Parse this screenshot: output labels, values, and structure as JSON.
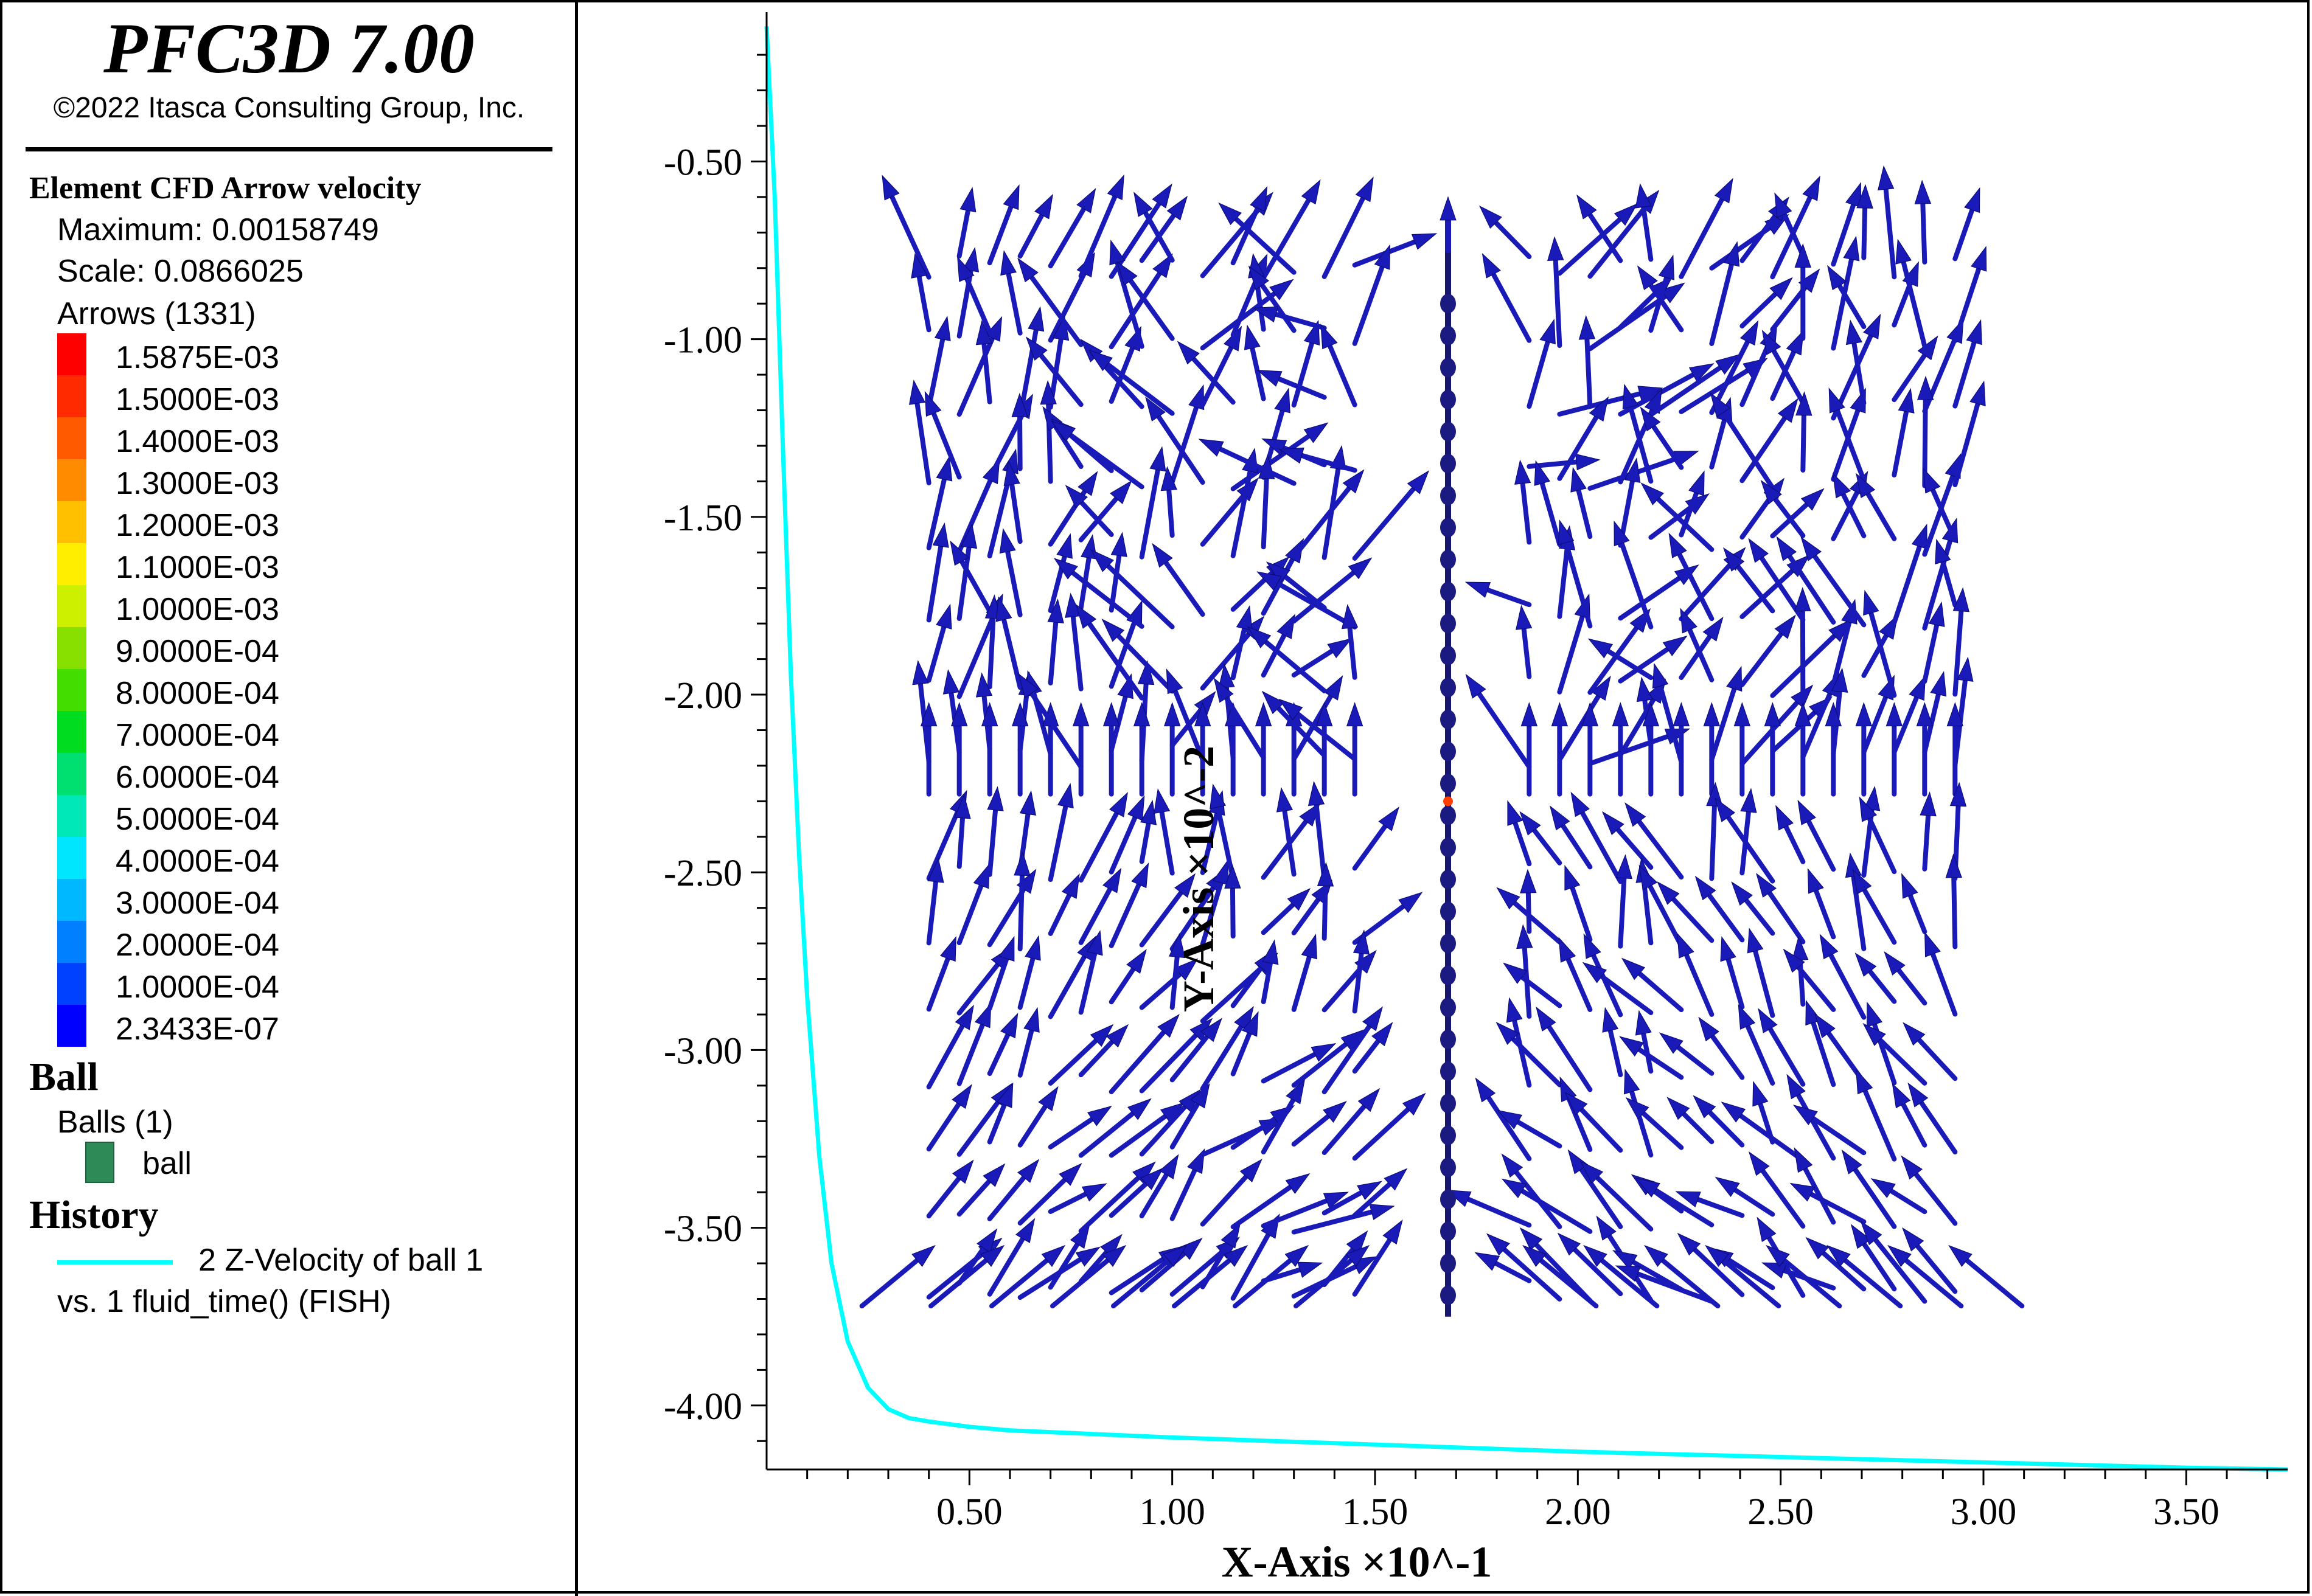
{
  "app": {
    "title": "PFC3D 7.00",
    "copyright": "©2022 Itasca Consulting Group, Inc."
  },
  "legend": {
    "arrow_section": {
      "title": "Element CFD Arrow velocity",
      "maximum": "Maximum: 0.00158749",
      "scale": "Scale: 0.0866025",
      "arrows": "Arrows (1331)",
      "colorbar": [
        {
          "label": "1.5875E-03",
          "color": "#ff0000"
        },
        {
          "label": "1.5000E-03",
          "color": "#ff2a00"
        },
        {
          "label": "1.4000E-03",
          "color": "#ff5a00"
        },
        {
          "label": "1.3000E-03",
          "color": "#ff8c00"
        },
        {
          "label": "1.2000E-03",
          "color": "#ffc000"
        },
        {
          "label": "1.1000E-03",
          "color": "#ffee00"
        },
        {
          "label": "1.0000E-03",
          "color": "#ccf000"
        },
        {
          "label": "9.0000E-04",
          "color": "#88e000"
        },
        {
          "label": "8.0000E-04",
          "color": "#44dd00"
        },
        {
          "label": "7.0000E-04",
          "color": "#00dd20"
        },
        {
          "label": "6.0000E-04",
          "color": "#00e070"
        },
        {
          "label": "5.0000E-04",
          "color": "#00e8b8"
        },
        {
          "label": "4.0000E-04",
          "color": "#00e6ff"
        },
        {
          "label": "3.0000E-04",
          "color": "#00b8ff"
        },
        {
          "label": "2.0000E-04",
          "color": "#0080ff"
        },
        {
          "label": "1.0000E-04",
          "color": "#0040ff"
        },
        {
          "label": "2.3433E-07",
          "color": "#0000ff"
        }
      ]
    },
    "ball_section": {
      "title": "Ball",
      "count": "Balls (1)",
      "item_label": "ball",
      "item_color": "#2e8b57"
    },
    "history_section": {
      "title": "History",
      "series_label": "2 Z-Velocity of ball 1",
      "series_sub": "vs. 1 fluid_time() (FISH)",
      "line_color": "#00ffff"
    }
  },
  "chart_data": {
    "type": "line",
    "xlabel": "X-Axis ×10^-1",
    "ylabel": "Y-Axis ×10^-2",
    "xlim": [
      0.0,
      3.75
    ],
    "ylim": [
      -4.18,
      -0.08
    ],
    "x_ticks": [
      "0.50",
      "1.00",
      "1.50",
      "2.00",
      "2.50",
      "3.00",
      "3.50"
    ],
    "y_ticks": [
      "-0.50",
      "-1.00",
      "-1.50",
      "-2.00",
      "-2.50",
      "-3.00",
      "-3.50",
      "-4.00"
    ],
    "series": [
      {
        "name": "2 Z-Velocity of ball 1",
        "color": "#00ffff",
        "x": [
          0.0,
          0.02,
          0.04,
          0.06,
          0.08,
          0.1,
          0.13,
          0.16,
          0.2,
          0.25,
          0.3,
          0.35,
          0.4,
          0.5,
          0.6,
          0.8,
          1.0,
          1.5,
          2.0,
          2.5,
          3.0,
          3.5,
          3.75
        ],
        "y": [
          -0.12,
          -0.6,
          -1.3,
          -1.95,
          -2.45,
          -2.85,
          -3.3,
          -3.6,
          -3.82,
          -3.95,
          -4.01,
          -4.035,
          -4.045,
          -4.06,
          -4.07,
          -4.08,
          -4.09,
          -4.11,
          -4.13,
          -4.145,
          -4.16,
          -4.175,
          -4.18
        ]
      }
    ],
    "arrow_field": {
      "count": 1331,
      "color": "#1a1ab8",
      "x_range": [
        0.4,
        2.95
      ],
      "y_range": [
        -3.75,
        -0.55
      ],
      "centerline_x": 1.68
    }
  }
}
